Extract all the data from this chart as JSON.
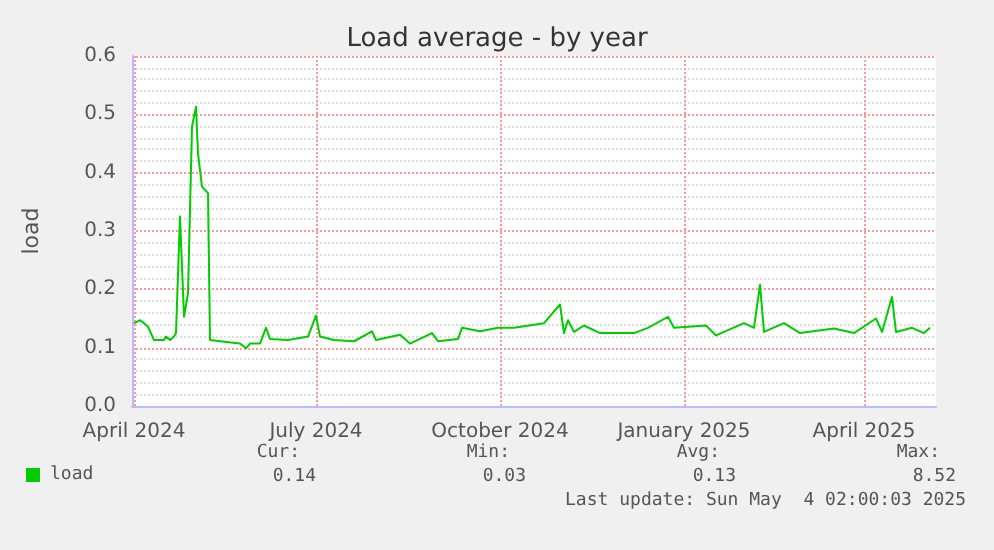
{
  "chart_data": {
    "type": "line",
    "title": "Load average - by year",
    "ylabel": "load",
    "x": [
      "2024-04-01",
      "2024-04-04",
      "2024-04-06",
      "2024-04-08",
      "2024-04-11",
      "2024-04-16",
      "2024-04-17",
      "2024-04-19",
      "2024-04-21",
      "2024-04-22",
      "2024-04-24",
      "2024-04-26",
      "2024-04-28",
      "2024-04-30",
      "2024-05-02",
      "2024-05-03",
      "2024-05-05",
      "2024-05-08",
      "2024-05-09",
      "2024-05-14",
      "2024-05-24",
      "2024-05-27",
      "2024-05-29",
      "2024-06-03",
      "2024-06-06",
      "2024-06-08",
      "2024-06-17",
      "2024-06-27",
      "2024-07-01",
      "2024-07-03",
      "2024-07-10",
      "2024-07-20",
      "2024-07-29",
      "2024-07-31",
      "2024-08-12",
      "2024-08-17",
      "2024-08-28",
      "2024-08-31",
      "2024-09-10",
      "2024-09-12",
      "2024-09-21",
      "2024-09-30",
      "2024-10-08",
      "2024-10-23",
      "2024-10-31",
      "2024-11-02",
      "2024-11-04",
      "2024-11-07",
      "2024-11-12",
      "2024-11-20",
      "2024-12-07",
      "2024-12-14",
      "2024-12-24",
      "2024-12-27",
      "2025-01-12",
      "2025-01-17",
      "2025-01-31",
      "2025-02-05",
      "2025-02-08",
      "2025-02-10",
      "2025-02-20",
      "2025-02-28",
      "2025-03-17",
      "2025-03-27",
      "2025-04-07",
      "2025-04-10",
      "2025-04-15",
      "2025-04-17",
      "2025-04-25",
      "2025-05-01",
      "2025-05-04"
    ],
    "series": [
      {
        "name": "load",
        "color": "#00cc00",
        "values": [
          0.142,
          0.147,
          0.142,
          0.136,
          0.113,
          0.113,
          0.119,
          0.113,
          0.119,
          0.125,
          0.325,
          0.153,
          0.193,
          0.479,
          0.513,
          0.433,
          0.376,
          0.365,
          0.113,
          0.111,
          0.107,
          0.099,
          0.107,
          0.107,
          0.134,
          0.115,
          0.113,
          0.119,
          0.155,
          0.119,
          0.113,
          0.111,
          0.128,
          0.113,
          0.122,
          0.107,
          0.125,
          0.111,
          0.115,
          0.134,
          0.128,
          0.134,
          0.134,
          0.142,
          0.174,
          0.125,
          0.147,
          0.127,
          0.138,
          0.125,
          0.125,
          0.134,
          0.153,
          0.134,
          0.138,
          0.121,
          0.142,
          0.134,
          0.208,
          0.127,
          0.142,
          0.125,
          0.133,
          0.125,
          0.15,
          0.127,
          0.187,
          0.127,
          0.134,
          0.125,
          0.134
        ]
      }
    ],
    "xlim": [
      "2024-03-31",
      "2025-05-07"
    ],
    "xticks": [
      {
        "value": "2024-04-01",
        "label": "April 2024"
      },
      {
        "value": "2024-07-01",
        "label": "July 2024"
      },
      {
        "value": "2024-10-01",
        "label": "October 2024"
      },
      {
        "value": "2025-01-01",
        "label": "January 2025"
      },
      {
        "value": "2025-04-01",
        "label": "April 2025"
      }
    ],
    "ylim": [
      0,
      0.6
    ],
    "yticks": [
      {
        "value": 0,
        "label": "0.0"
      },
      0.1,
      0.2,
      0.3,
      0.4,
      0.5,
      0.6
    ],
    "grid": true,
    "legend": "bottom left",
    "marker": "none",
    "line_style": "solid",
    "annotations": [
      "Cur:",
      "Min:",
      "Avg:",
      "Max:",
      "0.14",
      "0.03",
      "0.13",
      "8.52",
      "Last update: Sun May  4 02:00:03 2025"
    ]
  }
}
